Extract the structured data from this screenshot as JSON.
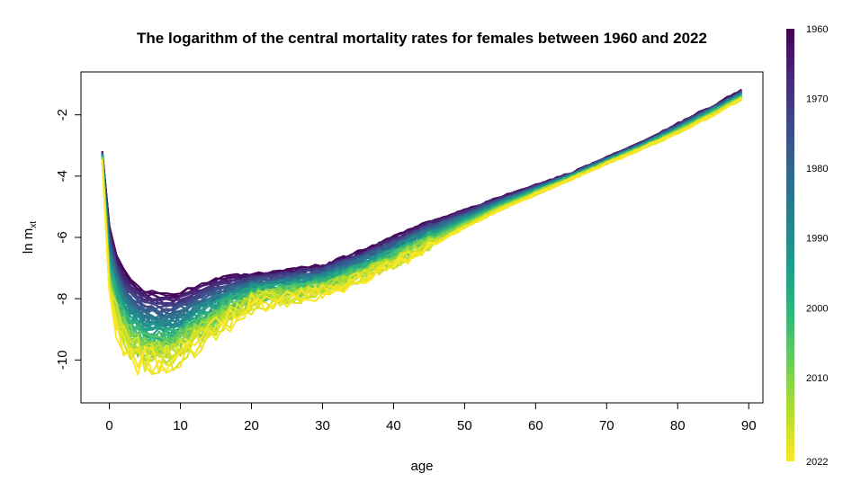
{
  "chart_data": {
    "type": "line",
    "title": "The logarithm of the central mortality rates for females between 1960 and 2022",
    "xlabel": "age",
    "ylabel_main": "ln m",
    "ylabel_sub": "xt",
    "xlim": [
      -4,
      92
    ],
    "ylim": [
      -11.4,
      -0.6
    ],
    "xticks": [
      0,
      10,
      20,
      30,
      40,
      50,
      60,
      70,
      80,
      90
    ],
    "xtick_labels": [
      "0",
      "10",
      "20",
      "30",
      "40",
      "50",
      "60",
      "70",
      "80",
      "90"
    ],
    "yticks": [
      -2,
      -4,
      -6,
      -8,
      -10
    ],
    "ytick_labels": [
      "-2",
      "-4",
      "-6",
      "-8",
      "-10"
    ],
    "age_range": [
      -1,
      89
    ],
    "year_range": [
      1960,
      2022
    ],
    "grid": false,
    "colorbar": {
      "position": "right",
      "palette": "viridis",
      "colors": [
        "#440154",
        "#482878",
        "#3e4989",
        "#31688e",
        "#26828e",
        "#1f9e89",
        "#35b779",
        "#6ece58",
        "#b5de2b",
        "#fde725"
      ],
      "labels": [
        {
          "year": 1960,
          "text": "1960"
        },
        {
          "year": 1970,
          "text": "1970"
        },
        {
          "year": 1980,
          "text": "1980"
        },
        {
          "year": 1990,
          "text": "1990"
        },
        {
          "year": 2000,
          "text": "2000"
        },
        {
          "year": 2010,
          "text": "2010"
        },
        {
          "year": 2022,
          "text": "2022"
        }
      ]
    },
    "profile_1960": {
      "age": [
        -1,
        0,
        1,
        2,
        3,
        4,
        5,
        7,
        9,
        10,
        12,
        15,
        18,
        20,
        25,
        30,
        35,
        40,
        45,
        50,
        55,
        60,
        65,
        70,
        75,
        80,
        85,
        89
      ],
      "ln_m": [
        -3.2,
        -5.6,
        -6.6,
        -7.1,
        -7.4,
        -7.6,
        -7.75,
        -7.85,
        -7.9,
        -7.8,
        -7.6,
        -7.35,
        -7.25,
        -7.2,
        -7.1,
        -6.9,
        -6.5,
        -6.0,
        -5.5,
        -5.1,
        -4.7,
        -4.3,
        -3.9,
        -3.4,
        -2.9,
        -2.3,
        -1.7,
        -1.2
      ]
    },
    "profile_2022": {
      "age": [
        -1,
        0,
        1,
        2,
        3,
        4,
        5,
        7,
        9,
        10,
        12,
        15,
        18,
        20,
        25,
        30,
        35,
        40,
        45,
        50,
        55,
        60,
        65,
        70,
        75,
        80,
        85,
        89
      ],
      "ln_m": [
        -3.5,
        -7.8,
        -8.8,
        -9.4,
        -9.7,
        -9.9,
        -10.0,
        -10.1,
        -10.0,
        -9.8,
        -9.5,
        -9.0,
        -8.5,
        -8.2,
        -8.0,
        -7.8,
        -7.4,
        -6.9,
        -6.3,
        -5.7,
        -5.1,
        -4.6,
        -4.1,
        -3.6,
        -3.1,
        -2.6,
        -2.0,
        -1.5
      ]
    }
  }
}
